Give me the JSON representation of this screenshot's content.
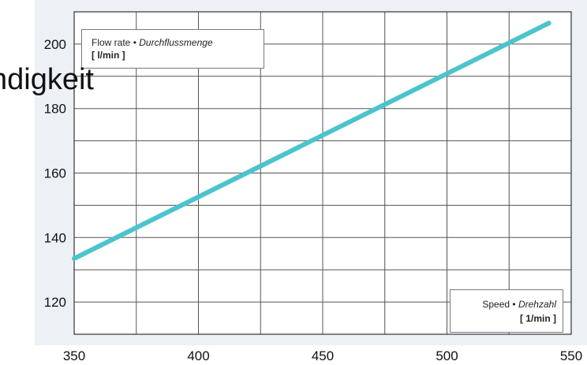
{
  "overlay": {
    "text": "ndigkeit"
  },
  "legends": {
    "y_label_en": "Flow rate",
    "y_label_sep": "•",
    "y_label_de": "Durchflussmenge",
    "y_unit": "[ l/min ]",
    "x_label_en": "Speed",
    "x_label_sep": "•",
    "x_label_de": "Drehzahl",
    "x_unit": "[ 1/min ]"
  },
  "colors": {
    "series": "#4bc4cc",
    "grid": "#555555",
    "axis_text": "#111111"
  },
  "chart_data": {
    "type": "line",
    "title": "",
    "xlabel": "Speed • Drehzahl [ 1/min ]",
    "ylabel": "Flow rate • Durchflussmenge [ l/min ]",
    "xlim": [
      350,
      550
    ],
    "ylim": [
      110,
      210
    ],
    "x_ticks": [
      350,
      400,
      450,
      500,
      550
    ],
    "y_ticks": [
      120,
      140,
      160,
      180,
      200
    ],
    "x_tick_labels": [
      "350",
      "400",
      "450",
      "500",
      "550"
    ],
    "y_tick_labels": [
      "120",
      "140",
      "160",
      "180",
      "200"
    ],
    "grid": true,
    "series": [
      {
        "x": [
          350,
          541
        ],
        "y": [
          133.5,
          206.5
        ]
      }
    ]
  }
}
